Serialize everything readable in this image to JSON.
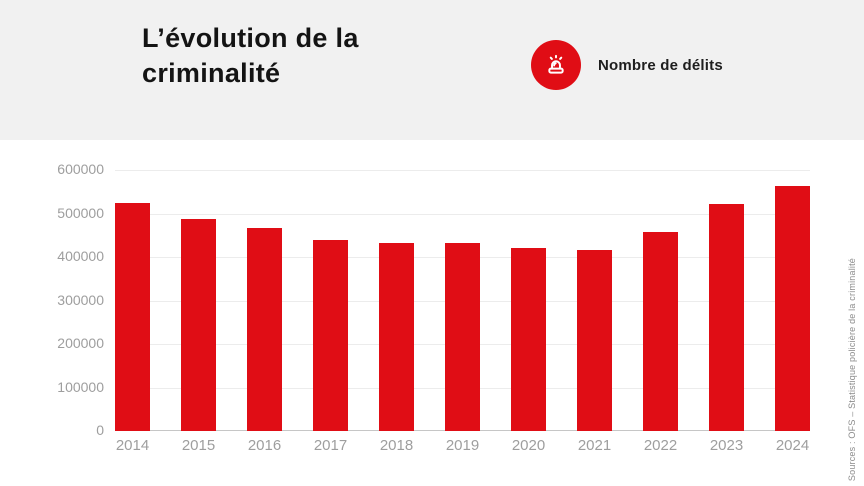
{
  "header": {
    "title": "L’évolution de la criminalité",
    "legend": {
      "icon": "siren-icon",
      "label": "Nombre de délits"
    }
  },
  "source_note": "Sources : OFS – Statistique policière de la criminalité",
  "colors": {
    "bar_red": "#e00d15",
    "header_bg": "#f1f1f1",
    "title_text": "#141414",
    "axis_label": "#9e9e9e",
    "gridline": "#ececec",
    "axis_line": "#c6c6c6"
  },
  "chart_data": {
    "type": "bar",
    "title": "L’évolution de la criminalité",
    "series_name": "Nombre de délits",
    "categories": [
      "2014",
      "2015",
      "2016",
      "2017",
      "2018",
      "2019",
      "2020",
      "2021",
      "2022",
      "2023",
      "2024"
    ],
    "values": [
      525000,
      487000,
      466000,
      439000,
      433000,
      432000,
      421000,
      415000,
      458000,
      522000,
      563000
    ],
    "xlabel": "",
    "ylabel": "",
    "ylim": [
      0,
      600000
    ],
    "yticks": [
      0,
      100000,
      200000,
      300000,
      400000,
      500000,
      600000
    ],
    "grid": true,
    "legend_position": "top-right",
    "bar_color": "#e00d15"
  }
}
